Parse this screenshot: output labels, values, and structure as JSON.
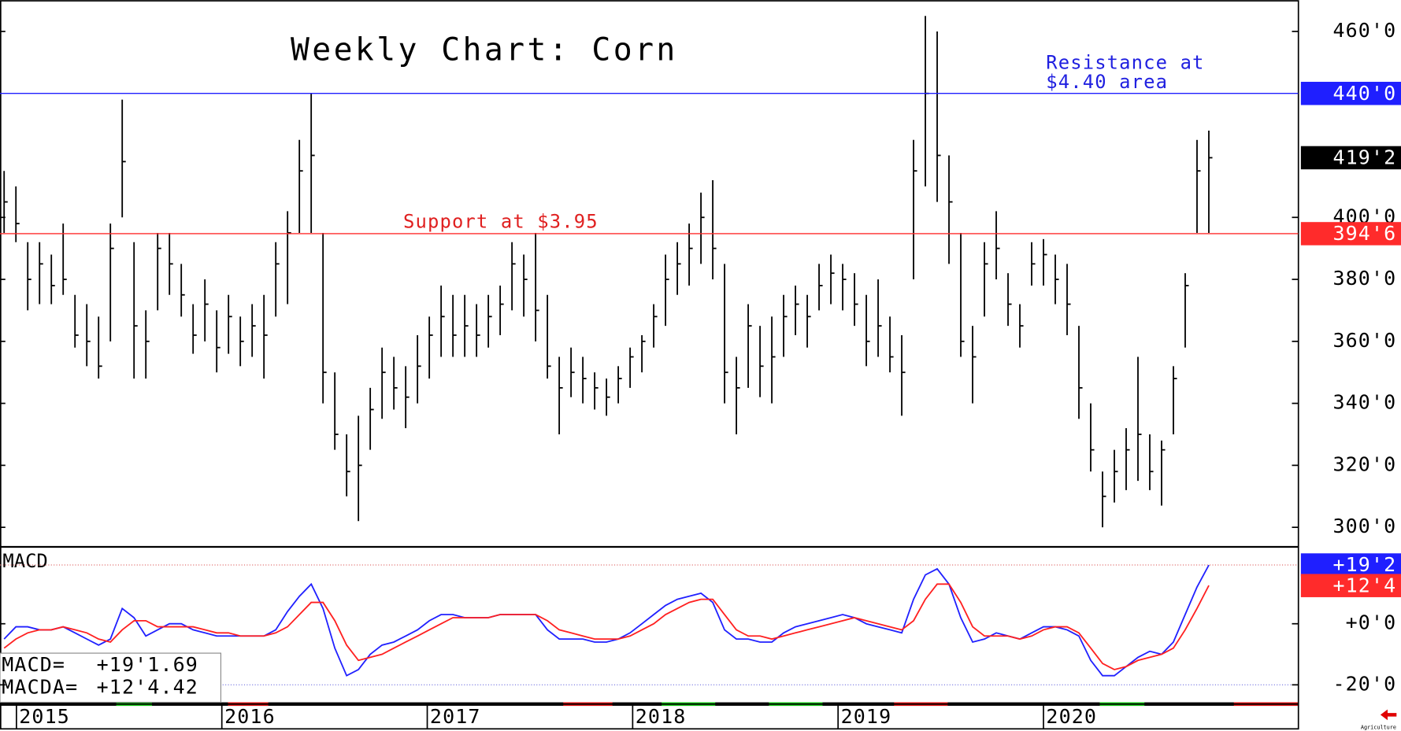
{
  "chart_data": [
    {
      "type": "ohlc",
      "title": "Weekly Chart: Corn",
      "annotations": [
        "Resistance at",
        "$4.40 area",
        "Support at $3.95"
      ],
      "x": [
        2014.94,
        2014.9975,
        2015.055,
        2015.1125,
        2015.17,
        2015.2275,
        2015.285,
        2015.3425,
        2015.4,
        2015.4575,
        2015.515,
        2015.5725,
        2015.63,
        2015.6875,
        2015.745,
        2015.8025,
        2015.86,
        2015.9175,
        2015.975,
        2016.0325,
        2016.09,
        2016.1475,
        2016.205,
        2016.2625,
        2016.32,
        2016.3775,
        2016.435,
        2016.4925,
        2016.55,
        2016.6075,
        2016.665,
        2016.7225,
        2016.78,
        2016.8375,
        2016.895,
        2016.9525,
        2017.01,
        2017.0675,
        2017.125,
        2017.1825,
        2017.24,
        2017.2975,
        2017.355,
        2017.4125,
        2017.47,
        2017.5275,
        2017.585,
        2017.6425,
        2017.7,
        2017.7575,
        2017.815,
        2017.8725,
        2017.93,
        2017.9875,
        2018.045,
        2018.1025,
        2018.16,
        2018.2175,
        2018.275,
        2018.3325,
        2018.39,
        2018.4475,
        2018.505,
        2018.5625,
        2018.62,
        2018.6775,
        2018.735,
        2018.7925,
        2018.85,
        2018.9075,
        2018.965,
        2019.0225,
        2019.08,
        2019.1375,
        2019.195,
        2019.2525,
        2019.31,
        2019.3675,
        2019.425,
        2019.4825,
        2019.54,
        2019.5975,
        2019.655,
        2019.7125,
        2019.77,
        2019.8275,
        2019.885,
        2019.9425,
        2020,
        2020.0575,
        2020.115,
        2020.1725,
        2020.23,
        2020.2875,
        2020.345,
        2020.4025,
        2020.46,
        2020.5175,
        2020.575,
        2020.6325,
        2020.69,
        2020.7475,
        2020.805
      ],
      "high": [
        415,
        410,
        392,
        392,
        388,
        398,
        375,
        372,
        368,
        398,
        438,
        392,
        370,
        395,
        395,
        385,
        372,
        380,
        370,
        375,
        368,
        372,
        375,
        392,
        402,
        425,
        440,
        395,
        350,
        330,
        336,
        345,
        358,
        355,
        352,
        362,
        368,
        378,
        375,
        375,
        372,
        375,
        378,
        392,
        388,
        395,
        375,
        355,
        358,
        355,
        350,
        348,
        352,
        358,
        362,
        372,
        388,
        392,
        398,
        408,
        412,
        385,
        355,
        372,
        365,
        368,
        375,
        378,
        375,
        385,
        388,
        385,
        382,
        375,
        380,
        368,
        362,
        425,
        465,
        460,
        420,
        395,
        365,
        392,
        402,
        382,
        372,
        392,
        393,
        388,
        385,
        365,
        340,
        318,
        325,
        332,
        355,
        330,
        328,
        352,
        382,
        425,
        428
      ],
      "low": [
        395,
        392,
        370,
        372,
        372,
        375,
        358,
        352,
        348,
        360,
        400,
        348,
        348,
        370,
        375,
        368,
        356,
        360,
        350,
        356,
        352,
        355,
        348,
        368,
        372,
        395,
        395,
        340,
        325,
        310,
        302,
        325,
        335,
        338,
        332,
        340,
        348,
        355,
        355,
        355,
        355,
        358,
        362,
        370,
        368,
        360,
        348,
        330,
        342,
        340,
        338,
        336,
        340,
        345,
        350,
        358,
        365,
        375,
        378,
        385,
        380,
        340,
        330,
        345,
        342,
        340,
        355,
        362,
        358,
        370,
        372,
        370,
        365,
        352,
        355,
        350,
        336,
        380,
        410,
        405,
        385,
        355,
        340,
        368,
        380,
        365,
        358,
        378,
        378,
        372,
        362,
        335,
        318,
        300,
        308,
        312,
        315,
        312,
        307,
        330,
        358,
        395,
        395
      ],
      "close": [
        405,
        398,
        380,
        385,
        378,
        380,
        362,
        360,
        352,
        390,
        418,
        365,
        360,
        390,
        385,
        375,
        362,
        372,
        358,
        368,
        360,
        365,
        362,
        385,
        395,
        415,
        420,
        350,
        330,
        318,
        320,
        338,
        350,
        345,
        342,
        352,
        362,
        368,
        362,
        365,
        362,
        368,
        372,
        385,
        380,
        370,
        352,
        345,
        350,
        348,
        345,
        342,
        348,
        355,
        360,
        368,
        380,
        385,
        390,
        400,
        390,
        350,
        345,
        365,
        352,
        355,
        368,
        372,
        368,
        378,
        382,
        380,
        372,
        360,
        365,
        355,
        350,
        415,
        440,
        420,
        405,
        360,
        355,
        385,
        390,
        372,
        365,
        385,
        388,
        380,
        372,
        345,
        325,
        310,
        318,
        325,
        330,
        318,
        325,
        348,
        378,
        415,
        419.25
      ],
      "color": "#000000",
      "xlim": [
        2014.92,
        2021.24
      ],
      "xticks": [
        2015,
        2016,
        2017,
        2018,
        2019,
        2020
      ],
      "ylim": [
        293.7,
        470.1
      ],
      "yticks": [
        {
          "value": 300,
          "label": "300'0"
        },
        {
          "value": 320,
          "label": "320'0"
        },
        {
          "value": 340,
          "label": "340'0"
        },
        {
          "value": 360,
          "label": "360'0"
        },
        {
          "value": 380,
          "label": "380'0"
        },
        {
          "value": 400,
          "label": "400'0"
        },
        {
          "value": 460,
          "label": "460'0"
        }
      ],
      "markers": [
        {
          "value": 440,
          "label": "440'0",
          "color": "#1f1fff",
          "line": true
        },
        {
          "value": 419.25,
          "label": "419'2",
          "color": "#000000",
          "line": false
        },
        {
          "value": 394.75,
          "label": "394'6",
          "color": "#ff2b2b",
          "line": true
        }
      ]
    },
    {
      "type": "line",
      "title": "MACD",
      "series": [
        {
          "color": "#2020ff",
          "values": [
            -5,
            -1,
            -1,
            -2,
            -2,
            -1,
            -3,
            -5,
            -7,
            -5,
            5,
            2,
            -4,
            -2,
            0,
            0,
            -2,
            -3,
            -4,
            -4,
            -4,
            -4,
            -4,
            -2,
            4,
            9,
            13,
            5,
            -8,
            -17,
            -15,
            -10,
            -7,
            -6,
            -4,
            -2,
            1,
            3,
            3,
            2,
            2,
            2,
            3,
            3,
            3,
            3,
            -2,
            -5,
            -5,
            -5,
            -6,
            -6,
            -5,
            -3,
            0,
            3,
            6,
            8,
            9,
            10,
            7,
            -2,
            -5,
            -5,
            -6,
            -6,
            -3,
            -1,
            0,
            1,
            2,
            3,
            2,
            0,
            -1,
            -2,
            -3,
            8,
            16,
            18,
            13,
            2,
            -6,
            -5,
            -3,
            -4,
            -5,
            -3,
            -1,
            -1,
            -2,
            -4,
            -12,
            -17,
            -17,
            -14,
            -11,
            -9,
            -10,
            -6,
            3,
            12,
            19.21
          ]
        },
        {
          "color": "#ff2020",
          "values": [
            -8,
            -5,
            -3,
            -2,
            -2,
            -1,
            -2,
            -3,
            -5,
            -6,
            -2,
            1,
            1,
            -1,
            -1,
            -1,
            -1,
            -2,
            -3,
            -3,
            -4,
            -4,
            -4,
            -3,
            -1,
            3,
            7,
            7,
            1,
            -7,
            -12,
            -11,
            -10,
            -8,
            -6,
            -4,
            -2,
            0,
            2,
            2,
            2,
            2,
            3,
            3,
            3,
            3,
            1,
            -2,
            -3,
            -4,
            -5,
            -5,
            -5,
            -4,
            -2,
            0,
            3,
            5,
            7,
            8,
            8,
            3,
            -2,
            -4,
            -4,
            -5,
            -4,
            -3,
            -2,
            -1,
            0,
            1,
            2,
            1,
            0,
            -1,
            -2,
            1,
            8,
            13,
            13,
            7,
            -1,
            -4,
            -4,
            -4,
            -5,
            -4,
            -2,
            -1,
            -1,
            -3,
            -8,
            -13,
            -15,
            -14,
            -12,
            -11,
            -10,
            -8,
            -2,
            5,
            12.55
          ]
        }
      ],
      "ylim": [
        -26.3,
        24.6
      ],
      "yticks": [
        {
          "value": -20,
          "label": "-20'0"
        },
        {
          "value": 0,
          "label": "+0'0"
        }
      ],
      "dotted": [
        {
          "value": 19.25,
          "color": "#e07070"
        },
        {
          "value": -20,
          "color": "#7070e0"
        }
      ],
      "markers": [
        {
          "value": 19.25,
          "label": "+19'2",
          "color": "#1f1fff"
        },
        {
          "value": 12.5,
          "label": "+12'4",
          "color": "#ff2b2b"
        }
      ],
      "readouts": [
        {
          "label": "MACD=",
          "value": "+19'1.69"
        },
        {
          "label": "MACDA=",
          "value": "+12'4.42"
        }
      ]
    }
  ],
  "source": "Agriculture"
}
